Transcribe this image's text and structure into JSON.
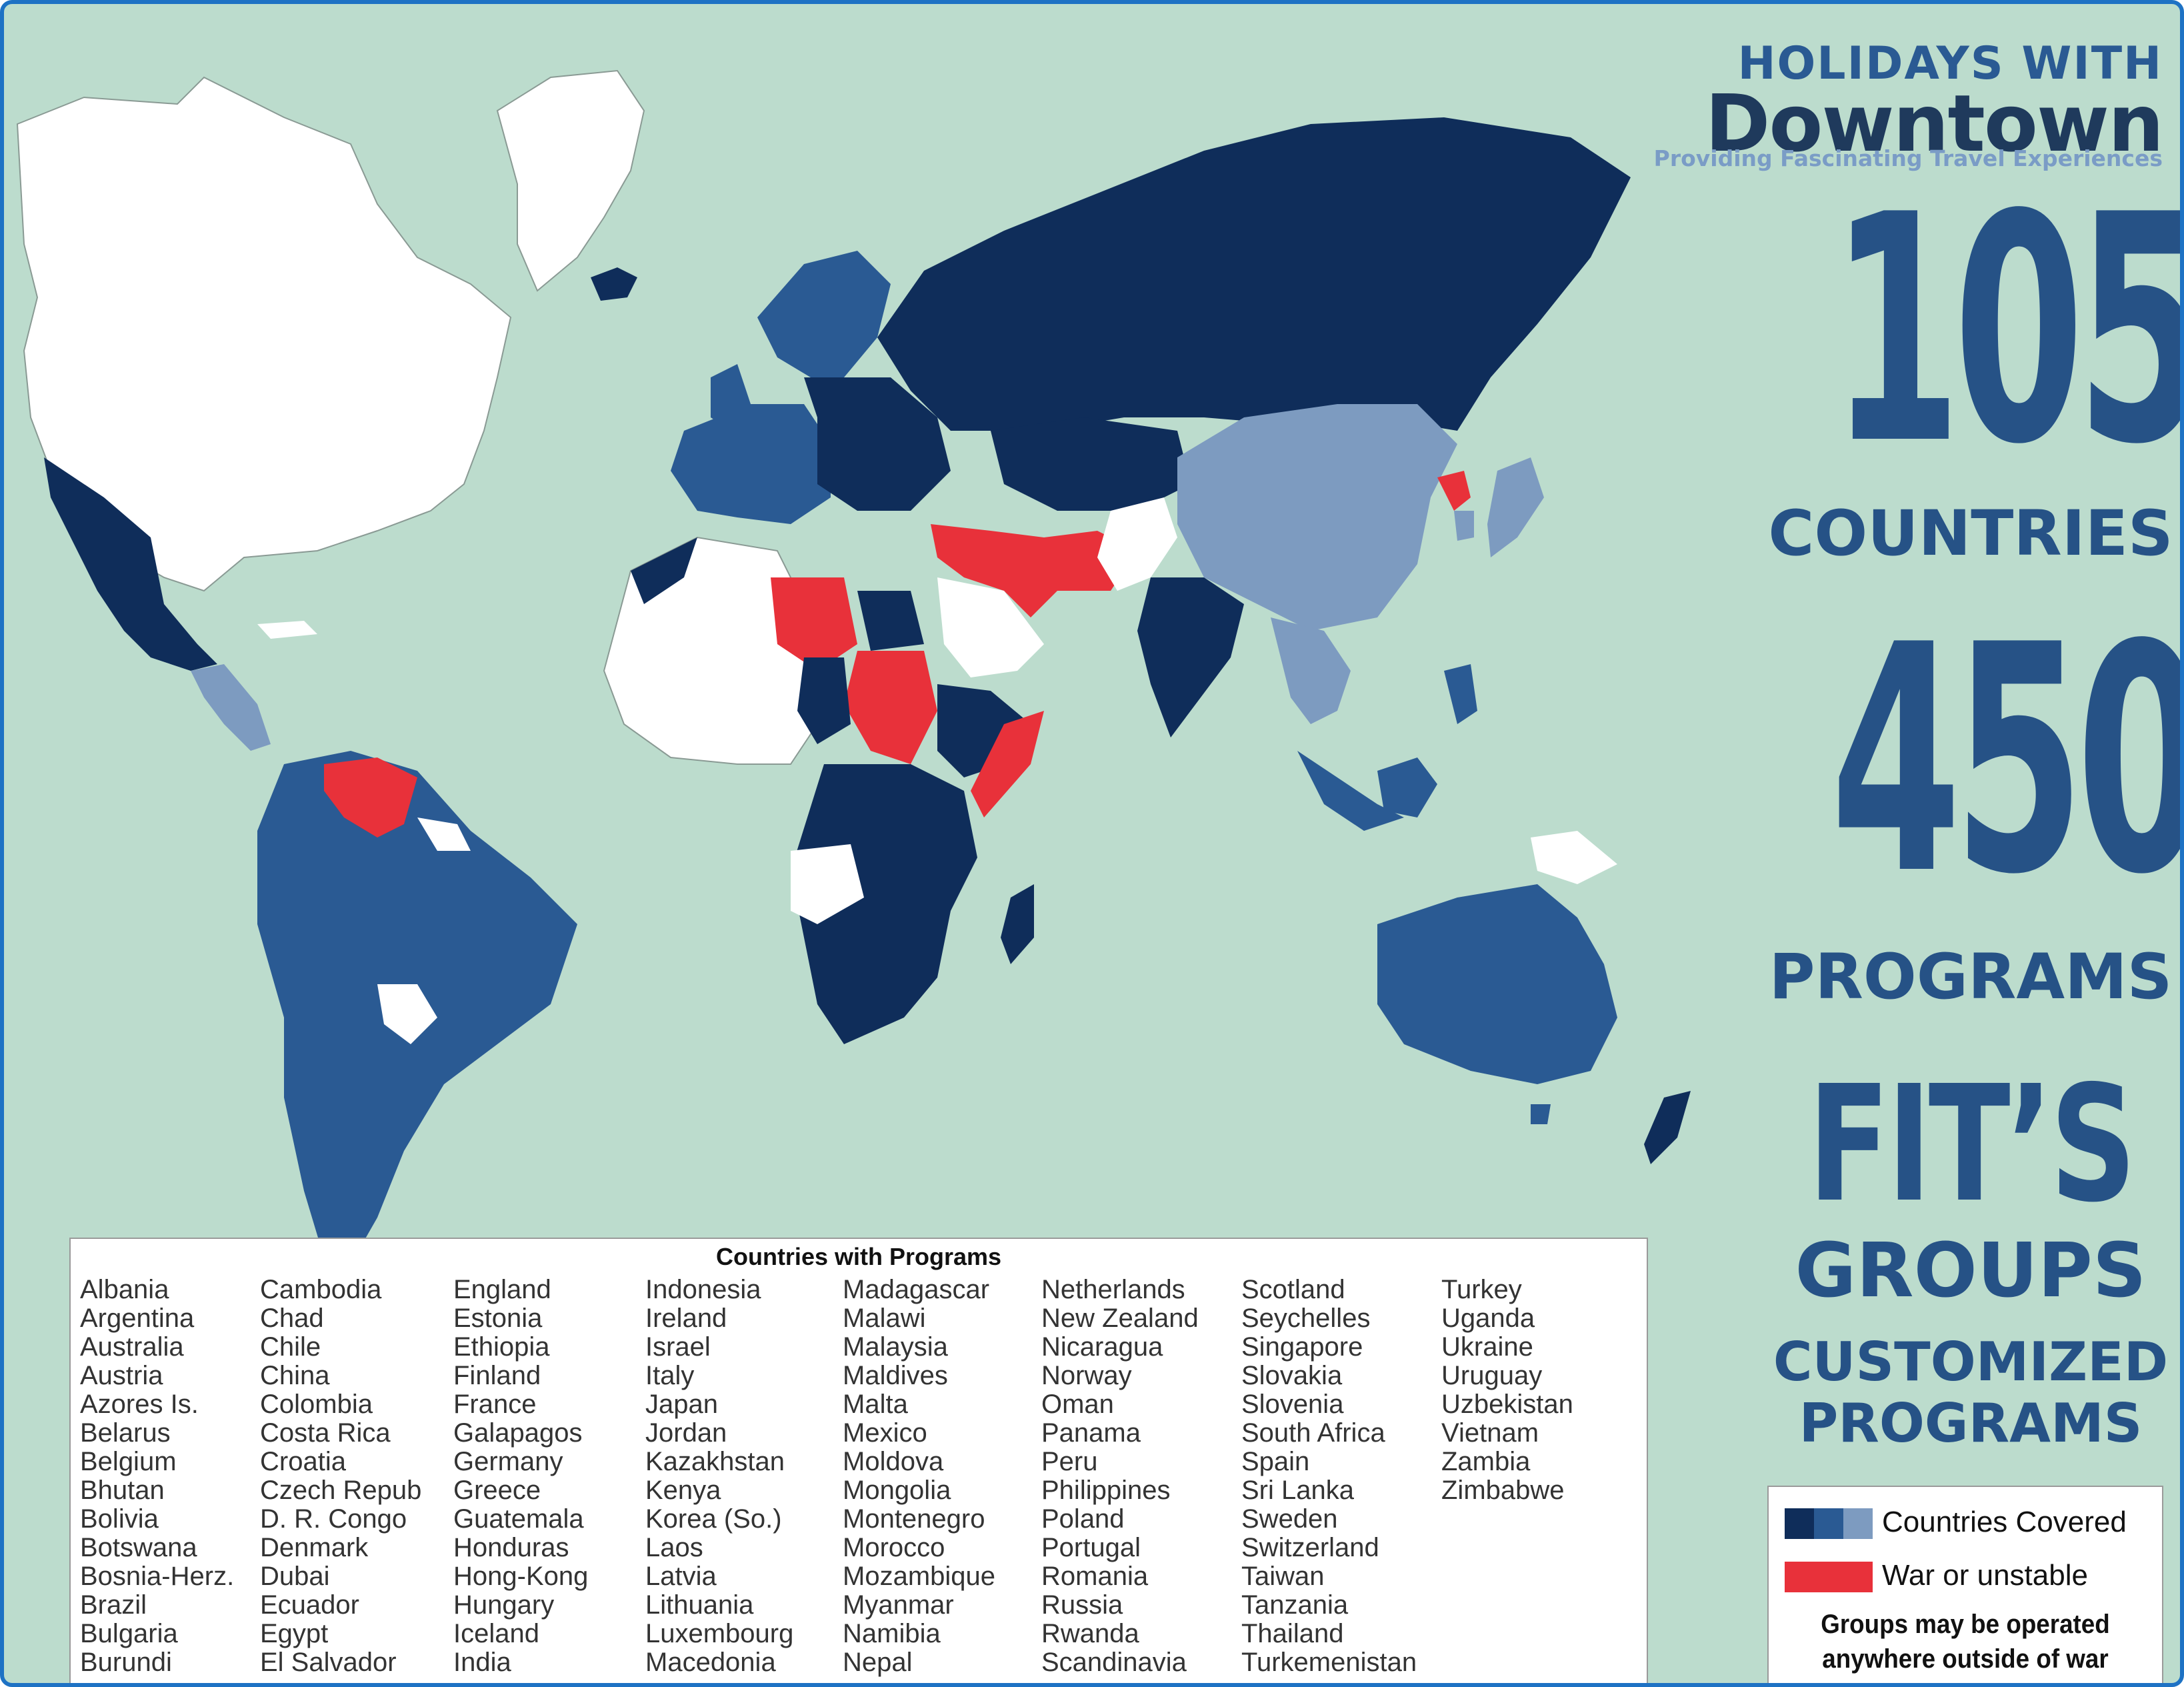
{
  "brand": {
    "line1": "HOLIDAYS WITH",
    "line2": "Downtown",
    "tagline": "Providing Fascinating Travel Experiences"
  },
  "stats": {
    "countries_value": "105",
    "countries_label": "COUNTRIES",
    "programs_value": "450",
    "programs_label": "PROGRAMS",
    "fits": "FIT’S",
    "groups": "GROUPS",
    "customized_line1": "CUSTOMIZED",
    "customized_line2": "PROGRAMS"
  },
  "list": {
    "title": "Countries with Programs",
    "columns": [
      [
        "Albania",
        "Argentina",
        "Australia",
        "Austria",
        "Azores Is.",
        "Belarus",
        "Belgium",
        "Bhutan",
        "Bolivia",
        "Botswana",
        "Bosnia-Herz.",
        "Brazil",
        "Bulgaria",
        "Burundi"
      ],
      [
        "Cambodia",
        "Chad",
        "Chile",
        "China",
        "Colombia",
        "Costa Rica",
        "Croatia",
        "Czech Repub",
        "D. R. Congo",
        "Denmark",
        "Dubai",
        "Ecuador",
        "Egypt",
        "El Salvador"
      ],
      [
        "England",
        "Estonia",
        "Ethiopia",
        "Finland",
        "France",
        "Galapagos",
        "Germany",
        "Greece",
        "Guatemala",
        "Honduras",
        "Hong-Kong",
        "Hungary",
        "Iceland",
        "India"
      ],
      [
        "Indonesia",
        "Ireland",
        "Israel",
        "Italy",
        "Japan",
        "Jordan",
        "Kazakhstan",
        "Kenya",
        "Korea (So.)",
        "Laos",
        "Latvia",
        "Lithuania",
        "Luxembourg",
        "Macedonia"
      ],
      [
        "Madagascar",
        "Malawi",
        "Malaysia",
        "Maldives",
        "Malta",
        "Mexico",
        "Moldova",
        "Mongolia",
        "Montenegro",
        "Morocco",
        "Mozambique",
        "Myanmar",
        "Namibia",
        "Nepal"
      ],
      [
        "Netherlands",
        "New Zealand",
        "Nicaragua",
        "Norway",
        "Oman",
        "Panama",
        "Peru",
        "Philippines",
        "Poland",
        "Portugal",
        "Romania",
        "Russia",
        "Rwanda",
        "Scandinavia"
      ],
      [
        "Scotland",
        "Seychelles",
        "Singapore",
        "Slovakia",
        "Slovenia",
        "South Africa",
        "Spain",
        "Sri Lanka",
        "Sweden",
        "Switzerland",
        "Taiwan",
        "Tanzania",
        "Thailand",
        "Turkemenistan"
      ],
      [
        "Turkey",
        "Uganda",
        "Ukraine",
        "Uruguay",
        "Uzbekistan",
        "Vietnam",
        "Zambia",
        "Zimbabwe"
      ]
    ]
  },
  "legend": {
    "covered_label": "Countries Covered",
    "war_label": "War or unstable",
    "note_line1": "Groups may be operated",
    "note_line2": "anywhere outside of war zones"
  },
  "colors": {
    "ocean": "#bcdccd",
    "covered_dark": "#0f2d5a",
    "covered_mid": "#2a5a93",
    "covered_light": "#7d9bc0",
    "war": "#e8313a",
    "not_covered": "#ffffff",
    "border": "#1e72c4"
  }
}
